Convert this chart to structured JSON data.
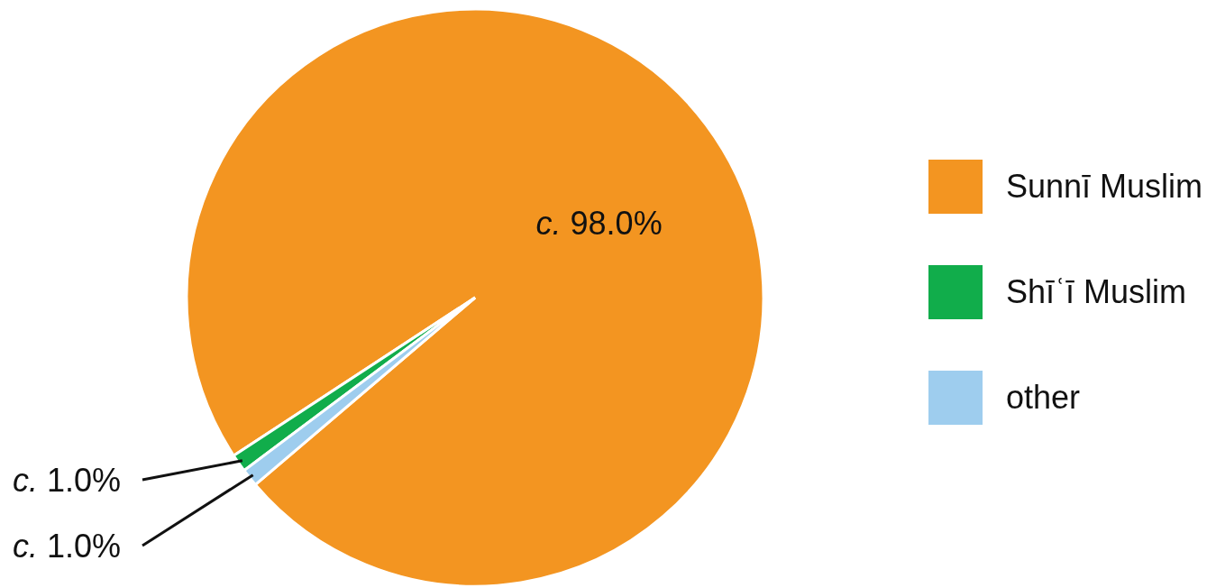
{
  "chart_data": {
    "type": "pie",
    "categories": [
      "Sunnī Muslim",
      "Shīʿī Muslim",
      "other"
    ],
    "values": [
      98.0,
      1.0,
      1.0
    ],
    "colors": [
      "#f39521",
      "#11ad4b",
      "#9ecdee"
    ],
    "value_labels": [
      "c. 98.0%",
      "c. 1.0%",
      "c. 1.0%"
    ],
    "legend": "right"
  }
}
